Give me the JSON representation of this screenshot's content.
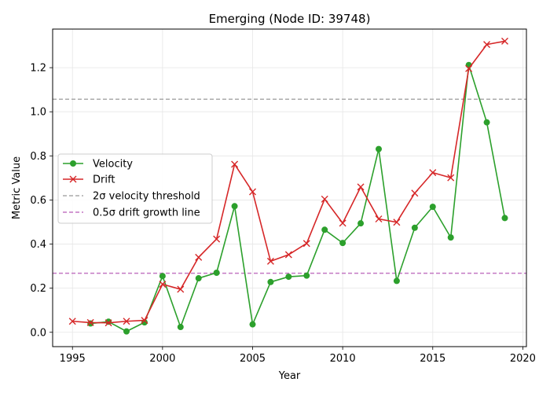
{
  "chart_data": {
    "type": "line",
    "title": "Emerging (Node ID: 39748)",
    "xlabel": "Year",
    "ylabel": "Metric Value",
    "xlim": [
      1993.9,
      2020.2
    ],
    "ylim": [
      -0.065,
      1.375
    ],
    "xticks": [
      1995,
      2000,
      2005,
      2010,
      2015,
      2020
    ],
    "yticks": [
      0.0,
      0.2,
      0.4,
      0.6,
      0.8,
      1.0,
      1.2
    ],
    "ytick_labels": [
      "0.0",
      "0.2",
      "0.4",
      "0.6",
      "0.8",
      "1.0",
      "1.2"
    ],
    "grid": true,
    "legend_position": "center-left",
    "series": [
      {
        "name": "Velocity",
        "color": "#2ca02c",
        "marker": "circle",
        "x": [
          1996,
          1997,
          1998,
          1999,
          2000,
          2001,
          2002,
          2003,
          2004,
          2005,
          2006,
          2007,
          2008,
          2009,
          2010,
          2011,
          2012,
          2013,
          2014,
          2015,
          2016,
          2017,
          2018,
          2019
        ],
        "y": [
          0.04,
          0.048,
          0.004,
          0.045,
          0.255,
          0.024,
          0.245,
          0.27,
          0.572,
          0.036,
          0.228,
          0.252,
          0.257,
          0.465,
          0.405,
          0.494,
          0.831,
          0.233,
          0.474,
          0.569,
          0.43,
          1.212,
          0.952,
          0.518
        ]
      },
      {
        "name": "Drift",
        "color": "#d62728",
        "marker": "x",
        "x": [
          1995,
          1996,
          1997,
          1998,
          1999,
          2000,
          2001,
          2002,
          2003,
          2004,
          2005,
          2006,
          2007,
          2008,
          2009,
          2010,
          2011,
          2012,
          2013,
          2014,
          2015,
          2016,
          2017,
          2018,
          2019
        ],
        "y": [
          0.05,
          0.044,
          0.043,
          0.05,
          0.054,
          0.218,
          0.195,
          0.34,
          0.423,
          0.762,
          0.637,
          0.322,
          0.352,
          0.403,
          0.604,
          0.495,
          0.659,
          0.514,
          0.499,
          0.631,
          0.724,
          0.701,
          1.196,
          1.305,
          1.32
        ]
      }
    ],
    "reference_lines": [
      {
        "name": "2σ velocity threshold",
        "y": 1.057,
        "color": "#aaaaaa",
        "style": "dashed"
      },
      {
        "name": "0.5σ drift growth line",
        "y": 0.268,
        "color": "#c377c3",
        "style": "dashed"
      }
    ]
  }
}
